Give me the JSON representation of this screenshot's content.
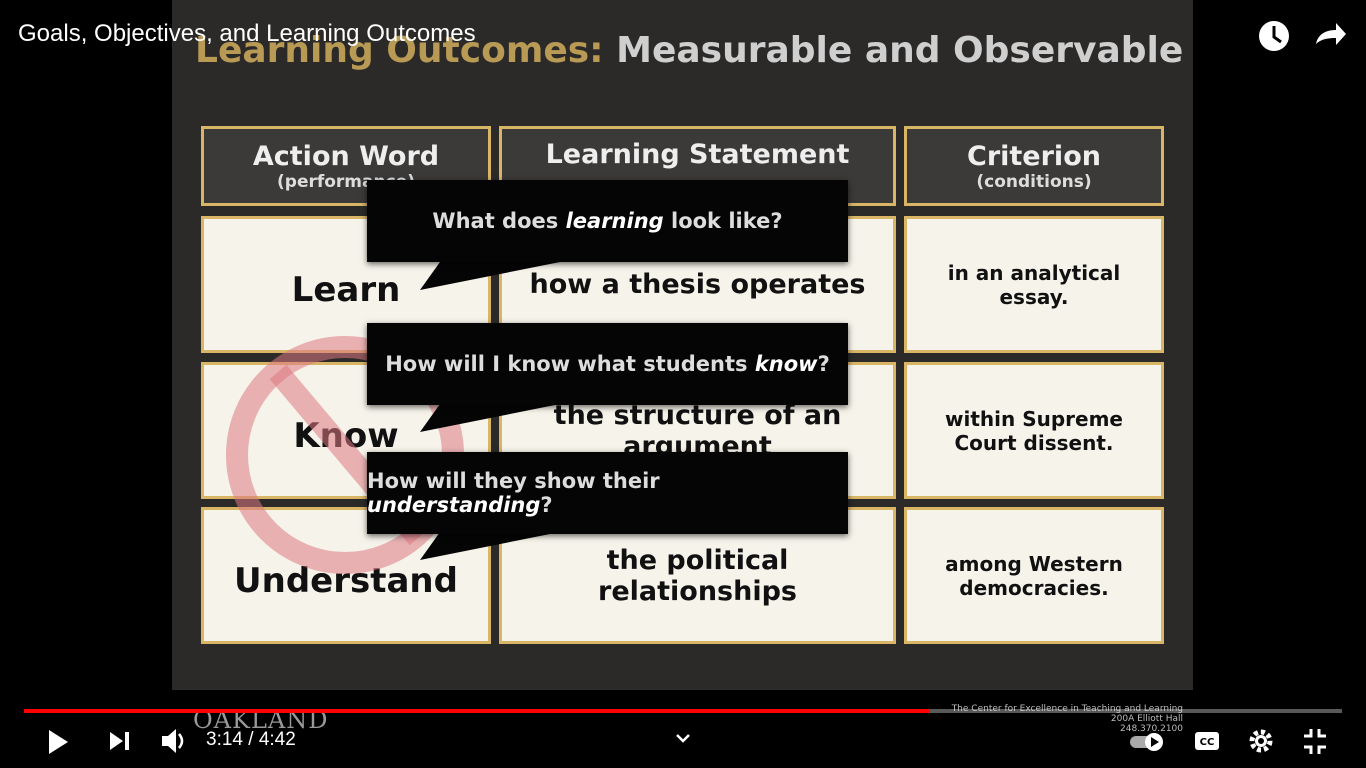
{
  "player": {
    "title": "Goals, Objectives, and Learning Outcomes",
    "time": "3:14 / 4:42"
  },
  "slide": {
    "title_lead": "Learning Outcomes:",
    "title_rest": "Measurable and Observable",
    "headers": [
      {
        "title": "Action Word",
        "subtitle": "(performance)"
      },
      {
        "title": "Learning Statement"
      },
      {
        "title": "Criterion",
        "subtitle": "(conditions)"
      }
    ],
    "rows": [
      [
        "Learn",
        "how a thesis operates",
        "in an analytical essay."
      ],
      [
        "Know",
        "the structure of an argument",
        "within Supreme Court dissent."
      ],
      [
        "Understand",
        "the political relationships",
        "among Western democracies."
      ]
    ],
    "bubbles": [
      {
        "before": "What does ",
        "emphasis": "learning",
        "after": " look like?"
      },
      {
        "before": "How will I know what students ",
        "emphasis": "know",
        "after": "?"
      },
      {
        "before": "How will they show their ",
        "emphasis": "understanding",
        "after": "?"
      }
    ],
    "footer": {
      "logo": "OAKLAND",
      "lines": [
        "The Center for Excellence in Teaching and Learning",
        "200A Elliott Hall",
        "248.370.2100"
      ]
    }
  }
}
